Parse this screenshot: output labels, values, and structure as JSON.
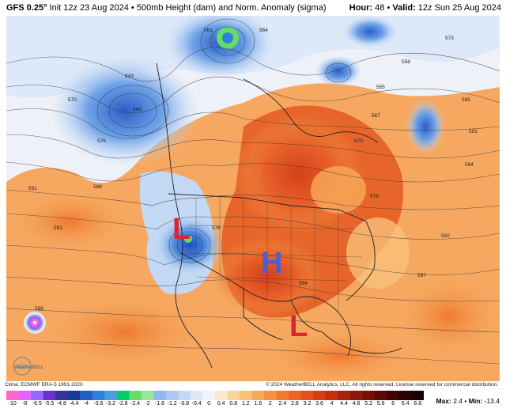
{
  "header": {
    "model": "GFS 0.25°",
    "init": "Init 12z 23 Aug 2024",
    "bullet": "•",
    "product": "500mb Height (dam) and Norm. Anomaly (sigma)",
    "hour_label": "Hour:",
    "hour_value": "48",
    "valid_label": "Valid:",
    "valid_value": "12z Sun 25 Aug 2024"
  },
  "map": {
    "high_label": "H",
    "low_labels": [
      "L",
      "L"
    ],
    "high_color": "#4a5fd0",
    "low_color": "#d8282e",
    "contour_labels": [
      "576",
      "591",
      "588",
      "543",
      "543",
      "570",
      "567",
      "558",
      "555",
      "585",
      "594",
      "591",
      "573",
      "594",
      "588",
      "591",
      "561",
      "564",
      "570",
      "579",
      "576",
      "582",
      "597"
    ],
    "logo_text": "WeatherBELL"
  },
  "credits": {
    "left": "Clima: ECMWF ERA-5 1991-2020",
    "right": "© 2024 WeatherBELL Analytics, LLC. All rights reserved. License reserved for commercial distribution."
  },
  "scale": {
    "labels": [
      "-10",
      "-8",
      "-6.5",
      "-5.5",
      "-4.8",
      "-4.4",
      "-4",
      "-3.6",
      "-3.2",
      "-2.8",
      "-2.4",
      "-2",
      "-1.6",
      "-1.2",
      "-0.8",
      "-0.4",
      "0",
      "0.4",
      "0.8",
      "1.2",
      "1.6",
      "2",
      "2.4",
      "2.8",
      "3.2",
      "3.6",
      "4",
      "4.4",
      "4.8",
      "5.2",
      "5.6",
      "6",
      "6.4",
      "6.8"
    ],
    "max_label": "Max:",
    "max_value": "2.4",
    "min_label": "Min:",
    "min_value": "-13.4",
    "colors": [
      "#ff66cc",
      "#e066ff",
      "#9966ff",
      "#6633cc",
      "#333399",
      "#1a3a99",
      "#1f5fbf",
      "#2d7fd9",
      "#4d9be6",
      "#00cc66",
      "#66dd66",
      "#99e699",
      "#8fb8ef",
      "#a9c8f2",
      "#c3d8f5",
      "#dde8f8",
      "#f2f4fb",
      "#fde8c8",
      "#fbd49c",
      "#f9c07a",
      "#f7a95a",
      "#f5913f",
      "#f27a2f",
      "#ec6325",
      "#e34f1d",
      "#d43d16",
      "#c22f10",
      "#a9230c",
      "#8f1908",
      "#751005",
      "#5a0903",
      "#410402",
      "#2b0201",
      "#1a0000"
    ]
  }
}
